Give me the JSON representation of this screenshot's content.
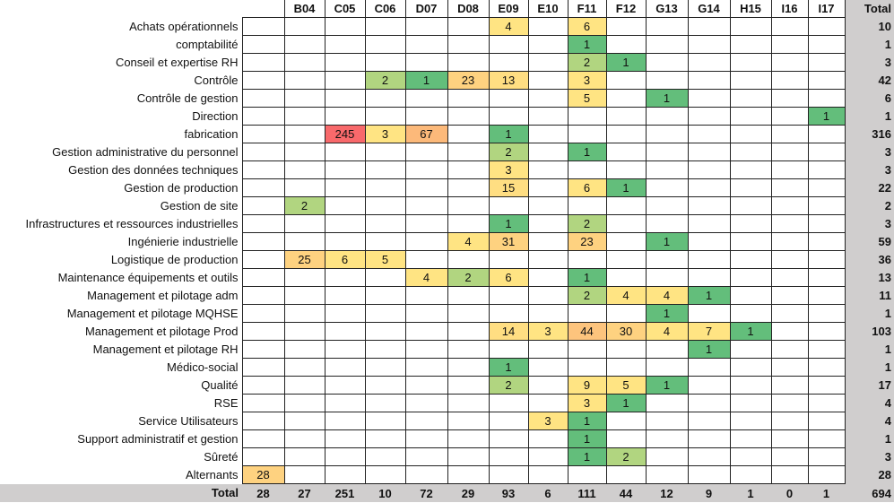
{
  "chart_data": {
    "type": "heatmap",
    "columns": [
      "",
      "B04",
      "C05",
      "C06",
      "D07",
      "D08",
      "E09",
      "E10",
      "F11",
      "F12",
      "G13",
      "G14",
      "H15",
      "I16",
      "I17"
    ],
    "total_header": "Total",
    "rows": [
      {
        "label": "Achats opérationnels",
        "values": [
          "",
          "",
          "",
          "",
          "",
          "",
          "4",
          "",
          "6",
          "",
          "",
          "",
          "",
          "",
          ""
        ],
        "total": "10"
      },
      {
        "label": "comptabilité",
        "values": [
          "",
          "",
          "",
          "",
          "",
          "",
          "",
          "",
          "1",
          "",
          "",
          "",
          "",
          "",
          ""
        ],
        "total": "1"
      },
      {
        "label": "Conseil et expertise RH",
        "values": [
          "",
          "",
          "",
          "",
          "",
          "",
          "",
          "",
          "2",
          "1",
          "",
          "",
          "",
          "",
          ""
        ],
        "total": "3"
      },
      {
        "label": "Contrôle",
        "values": [
          "",
          "",
          "",
          "2",
          "1",
          "23",
          "13",
          "",
          "3",
          "",
          "",
          "",
          "",
          "",
          ""
        ],
        "total": "42"
      },
      {
        "label": "Contrôle de gestion",
        "values": [
          "",
          "",
          "",
          "",
          "",
          "",
          "",
          "",
          "5",
          "",
          "1",
          "",
          "",
          "",
          ""
        ],
        "total": "6"
      },
      {
        "label": "Direction",
        "values": [
          "",
          "",
          "",
          "",
          "",
          "",
          "",
          "",
          "",
          "",
          "",
          "",
          "",
          "",
          "1"
        ],
        "total": "1"
      },
      {
        "label": "fabrication",
        "values": [
          "",
          "",
          "245",
          "3",
          "67",
          "",
          "1",
          "",
          "",
          "",
          "",
          "",
          "",
          "",
          ""
        ],
        "total": "316"
      },
      {
        "label": "Gestion administrative du personnel",
        "values": [
          "",
          "",
          "",
          "",
          "",
          "",
          "2",
          "",
          "1",
          "",
          "",
          "",
          "",
          "",
          ""
        ],
        "total": "3"
      },
      {
        "label": "Gestion des données techniques",
        "values": [
          "",
          "",
          "",
          "",
          "",
          "",
          "3",
          "",
          "",
          "",
          "",
          "",
          "",
          "",
          ""
        ],
        "total": "3"
      },
      {
        "label": "Gestion de production",
        "values": [
          "",
          "",
          "",
          "",
          "",
          "",
          "15",
          "",
          "6",
          "1",
          "",
          "",
          "",
          "",
          ""
        ],
        "total": "22"
      },
      {
        "label": "Gestion de site",
        "values": [
          "",
          "2",
          "",
          "",
          "",
          "",
          "",
          "",
          "",
          "",
          "",
          "",
          "",
          "",
          ""
        ],
        "total": "2"
      },
      {
        "label": "Infrastructures et ressources industrielles",
        "values": [
          "",
          "",
          "",
          "",
          "",
          "",
          "1",
          "",
          "2",
          "",
          "",
          "",
          "",
          "",
          ""
        ],
        "total": "3"
      },
      {
        "label": "Ingénierie industrielle",
        "values": [
          "",
          "",
          "",
          "",
          "",
          "4",
          "31",
          "",
          "23",
          "",
          "1",
          "",
          "",
          "",
          ""
        ],
        "total": "59"
      },
      {
        "label": "Logistique de production",
        "values": [
          "",
          "25",
          "6",
          "5",
          "",
          "",
          "",
          "",
          "",
          "",
          "",
          "",
          "",
          "",
          ""
        ],
        "total": "36"
      },
      {
        "label": "Maintenance équipements et outils",
        "values": [
          "",
          "",
          "",
          "",
          "4",
          "2",
          "6",
          "",
          "1",
          "",
          "",
          "",
          "",
          "",
          ""
        ],
        "total": "13"
      },
      {
        "label": "Management et pilotage adm",
        "values": [
          "",
          "",
          "",
          "",
          "",
          "",
          "",
          "",
          "2",
          "4",
          "4",
          "1",
          "",
          "",
          ""
        ],
        "total": "11"
      },
      {
        "label": "Management et pilotage MQHSE",
        "values": [
          "",
          "",
          "",
          "",
          "",
          "",
          "",
          "",
          "",
          "",
          "1",
          "",
          "",
          "",
          ""
        ],
        "total": "1"
      },
      {
        "label": "Management et pilotage Prod",
        "values": [
          "",
          "",
          "",
          "",
          "",
          "",
          "14",
          "3",
          "44",
          "30",
          "4",
          "7",
          "1",
          "",
          ""
        ],
        "total": "103"
      },
      {
        "label": "Management et pilotage RH",
        "values": [
          "",
          "",
          "",
          "",
          "",
          "",
          "",
          "",
          "",
          "",
          "",
          "1",
          "",
          "",
          ""
        ],
        "total": "1"
      },
      {
        "label": "Médico-social",
        "values": [
          "",
          "",
          "",
          "",
          "",
          "",
          "1",
          "",
          "",
          "",
          "",
          "",
          "",
          "",
          ""
        ],
        "total": "1"
      },
      {
        "label": "Qualité",
        "values": [
          "",
          "",
          "",
          "",
          "",
          "",
          "2",
          "",
          "9",
          "5",
          "1",
          "",
          "",
          "",
          ""
        ],
        "total": "17"
      },
      {
        "label": "RSE",
        "values": [
          "",
          "",
          "",
          "",
          "",
          "",
          "",
          "",
          "3",
          "1",
          "",
          "",
          "",
          "",
          ""
        ],
        "total": "4"
      },
      {
        "label": "Service Utilisateurs",
        "values": [
          "",
          "",
          "",
          "",
          "",
          "",
          "",
          "3",
          "1",
          "",
          "",
          "",
          "",
          "",
          ""
        ],
        "total": "4"
      },
      {
        "label": "Support administratif et gestion",
        "values": [
          "",
          "",
          "",
          "",
          "",
          "",
          "",
          "",
          "1",
          "",
          "",
          "",
          "",
          "",
          ""
        ],
        "total": "1"
      },
      {
        "label": "Sûreté",
        "values": [
          "",
          "",
          "",
          "",
          "",
          "",
          "",
          "",
          "1",
          "2",
          "",
          "",
          "",
          "",
          ""
        ],
        "total": "3"
      },
      {
        "label": "Alternants",
        "values": [
          "28",
          "",
          "",
          "",
          "",
          "",
          "",
          "",
          "",
          "",
          "",
          "",
          "",
          "",
          ""
        ],
        "total": "28"
      }
    ],
    "total_row": {
      "label": "Total",
      "values": [
        "28",
        "27",
        "251",
        "10",
        "72",
        "29",
        "93",
        "6",
        "111",
        "44",
        "12",
        "9",
        "1",
        "0",
        "1"
      ],
      "total": "694"
    },
    "color_scale": [
      {
        "max": 1,
        "color": "#63be7b"
      },
      {
        "max": 2,
        "color": "#b1d580"
      },
      {
        "max": 9,
        "color": "#ffe483"
      },
      {
        "max": 15,
        "color": "#ffde82"
      },
      {
        "max": 31,
        "color": "#fed280"
      },
      {
        "max": 44,
        "color": "#fdc47d"
      },
      {
        "max": 67,
        "color": "#fcb97a"
      },
      {
        "max": 1000,
        "color": "#f8696b"
      }
    ]
  }
}
